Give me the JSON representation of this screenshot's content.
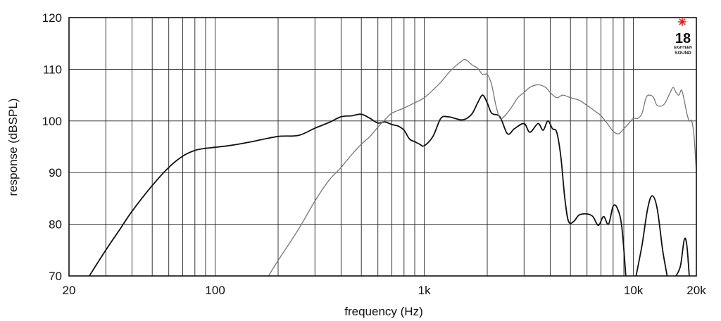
{
  "chart_data": {
    "type": "line",
    "title": "",
    "xlabel": "frequency (Hz)",
    "ylabel": "response (dBSPL)",
    "xscale": "log",
    "xlim": [
      20,
      20000
    ],
    "ylim": [
      70,
      120
    ],
    "grid": true,
    "x_tick_labels": [
      {
        "value": 20,
        "label": "20"
      },
      {
        "value": 100,
        "label": "100"
      },
      {
        "value": 1000,
        "label": "1k"
      },
      {
        "value": 10000,
        "label": "10k"
      },
      {
        "value": 20000,
        "label": "20k"
      }
    ],
    "y_ticks": [
      70,
      80,
      90,
      100,
      110,
      120
    ],
    "series": [
      {
        "color": "#111111",
        "points": [
          [
            25,
            70
          ],
          [
            30,
            75
          ],
          [
            35,
            79
          ],
          [
            40,
            82.5
          ],
          [
            50,
            87.5
          ],
          [
            60,
            91
          ],
          [
            70,
            93.2
          ],
          [
            80,
            94.3
          ],
          [
            90,
            94.7
          ],
          [
            100,
            94.9
          ],
          [
            120,
            95.3
          ],
          [
            150,
            96
          ],
          [
            200,
            97
          ],
          [
            250,
            97.2
          ],
          [
            300,
            98.6
          ],
          [
            350,
            99.7
          ],
          [
            400,
            100.8
          ],
          [
            450,
            101
          ],
          [
            500,
            101.3
          ],
          [
            550,
            100.5
          ],
          [
            600,
            99.6
          ],
          [
            650,
            99.8
          ],
          [
            700,
            99.3
          ],
          [
            750,
            99
          ],
          [
            800,
            98.2
          ],
          [
            850,
            96.5
          ],
          [
            900,
            96
          ],
          [
            950,
            95.5
          ],
          [
            1000,
            95.2
          ],
          [
            1100,
            97
          ],
          [
            1200,
            100.5
          ],
          [
            1300,
            100.8
          ],
          [
            1400,
            100.5
          ],
          [
            1500,
            100.2
          ],
          [
            1600,
            100.5
          ],
          [
            1700,
            101.5
          ],
          [
            1800,
            103.5
          ],
          [
            1900,
            105
          ],
          [
            2000,
            103.5
          ],
          [
            2100,
            101.5
          ],
          [
            2300,
            100.8
          ],
          [
            2500,
            97.5
          ],
          [
            2700,
            98.5
          ],
          [
            3000,
            99.5
          ],
          [
            3200,
            97.8
          ],
          [
            3500,
            99.5
          ],
          [
            3700,
            98.2
          ],
          [
            3900,
            100
          ],
          [
            4100,
            98.5
          ],
          [
            4300,
            97.8
          ],
          [
            4500,
            93
          ],
          [
            4700,
            85
          ],
          [
            4900,
            80.5
          ],
          [
            5200,
            80.6
          ],
          [
            5500,
            81.8
          ],
          [
            6000,
            82
          ],
          [
            6400,
            81.5
          ],
          [
            6800,
            79.8
          ],
          [
            7200,
            81.5
          ],
          [
            7600,
            80
          ],
          [
            8000,
            83.5
          ],
          [
            8400,
            83
          ],
          [
            8800,
            79.5
          ],
          [
            9200,
            70
          ]
        ]
      },
      {
        "color": "#111111",
        "points": [
          [
            10300,
            70
          ],
          [
            11000,
            76
          ],
          [
            11700,
            83
          ],
          [
            12300,
            85.5
          ],
          [
            13000,
            83
          ],
          [
            13800,
            75
          ],
          [
            14500,
            70
          ]
        ]
      },
      {
        "color": "#111111",
        "points": [
          [
            16000,
            70
          ],
          [
            16800,
            72
          ],
          [
            17500,
            77
          ],
          [
            18000,
            76
          ],
          [
            18500,
            70
          ]
        ]
      },
      {
        "color": "#777777",
        "points": [
          [
            180,
            70
          ],
          [
            200,
            73
          ],
          [
            250,
            79
          ],
          [
            300,
            84.5
          ],
          [
            350,
            88.5
          ],
          [
            400,
            91
          ],
          [
            450,
            93.5
          ],
          [
            500,
            95.5
          ],
          [
            550,
            97
          ],
          [
            600,
            98.8
          ],
          [
            650,
            100.3
          ],
          [
            700,
            101.5
          ],
          [
            800,
            102.5
          ],
          [
            900,
            103.5
          ],
          [
            1000,
            104.5
          ],
          [
            1100,
            106
          ],
          [
            1200,
            107.5
          ],
          [
            1300,
            109.2
          ],
          [
            1400,
            110.5
          ],
          [
            1500,
            111.5
          ],
          [
            1550,
            111.9
          ],
          [
            1600,
            111.7
          ],
          [
            1700,
            110.8
          ],
          [
            1800,
            110.2
          ],
          [
            1900,
            109
          ],
          [
            2000,
            109
          ],
          [
            2100,
            107
          ],
          [
            2200,
            103
          ],
          [
            2300,
            100.5
          ],
          [
            2400,
            100.8
          ],
          [
            2600,
            102.5
          ],
          [
            2800,
            104.5
          ],
          [
            3000,
            105.5
          ],
          [
            3200,
            106.5
          ],
          [
            3500,
            107
          ],
          [
            3800,
            106.5
          ],
          [
            4000,
            105.5
          ],
          [
            4300,
            104.5
          ],
          [
            4600,
            105
          ],
          [
            5000,
            104.5
          ],
          [
            5500,
            104
          ],
          [
            6000,
            103
          ],
          [
            6500,
            102
          ],
          [
            7000,
            101
          ],
          [
            7500,
            99.5
          ],
          [
            8000,
            98
          ],
          [
            8500,
            97.5
          ],
          [
            9000,
            98.5
          ],
          [
            9500,
            99.5
          ],
          [
            10000,
            100.5
          ],
          [
            10500,
            100.5
          ],
          [
            11000,
            101.5
          ],
          [
            11500,
            104.5
          ],
          [
            12000,
            105
          ],
          [
            12500,
            104.5
          ],
          [
            13000,
            103
          ],
          [
            14000,
            103.2
          ],
          [
            15000,
            105.5
          ],
          [
            15500,
            106.5
          ],
          [
            16000,
            105.5
          ],
          [
            16500,
            105
          ],
          [
            17000,
            106
          ],
          [
            17500,
            104
          ],
          [
            18000,
            101.5
          ],
          [
            18500,
            100
          ],
          [
            19000,
            100
          ],
          [
            19500,
            97
          ],
          [
            20000,
            90
          ]
        ]
      }
    ]
  },
  "logo": {
    "number": "18",
    "text_line1": "EIGHTEEN",
    "text_line2": "SOUND"
  }
}
